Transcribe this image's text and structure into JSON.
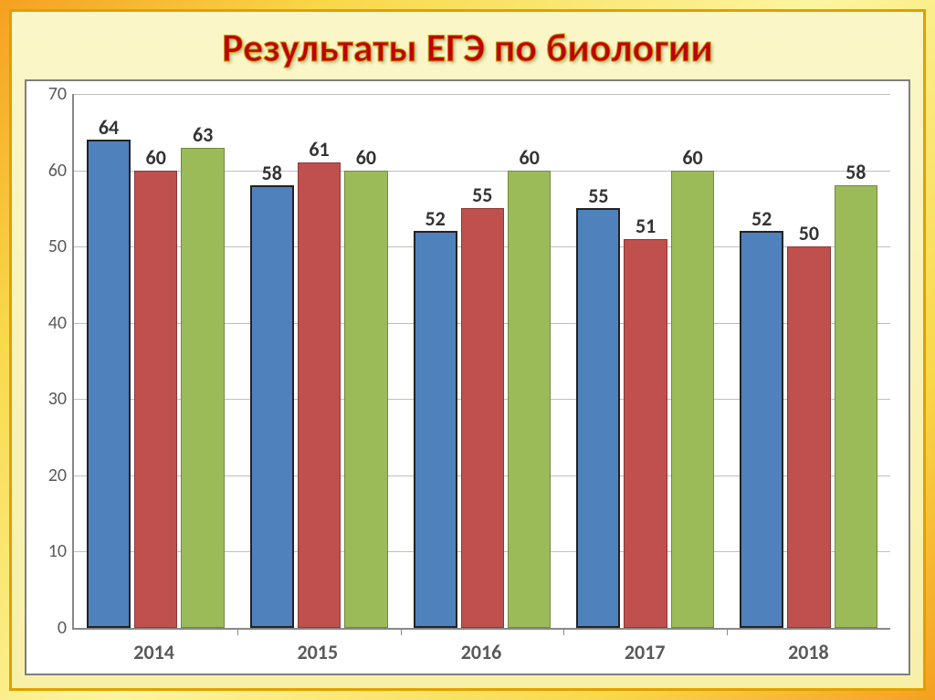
{
  "title": "Результаты ЕГЭ по биологии",
  "chart": {
    "type": "bar",
    "ylim": [
      0,
      70
    ],
    "ytick_step": 10,
    "yticks": [
      0,
      10,
      20,
      30,
      40,
      50,
      60,
      70
    ],
    "categories": [
      "2014",
      "2015",
      "2016",
      "2017",
      "2018"
    ],
    "series": [
      {
        "name": "series1",
        "color": "#4f81bd",
        "border": "#385d8a",
        "emphasized": true
      },
      {
        "name": "series2",
        "color": "#c0504d",
        "border": "#8c3836",
        "emphasized": false
      },
      {
        "name": "series3",
        "color": "#9bbb59",
        "border": "#71893f",
        "emphasized": false
      }
    ],
    "data": [
      [
        64,
        60,
        63
      ],
      [
        58,
        61,
        60
      ],
      [
        52,
        55,
        60
      ],
      [
        55,
        51,
        60
      ],
      [
        52,
        50,
        58
      ]
    ],
    "background_color": "#ffffff",
    "grid_color": "#bfbfbf",
    "axis_color": "#888888",
    "label_fontsize": 22,
    "tick_fontsize": 20,
    "value_label_fontsize": 22,
    "title_fontsize": 44,
    "title_color": "#c00000"
  }
}
